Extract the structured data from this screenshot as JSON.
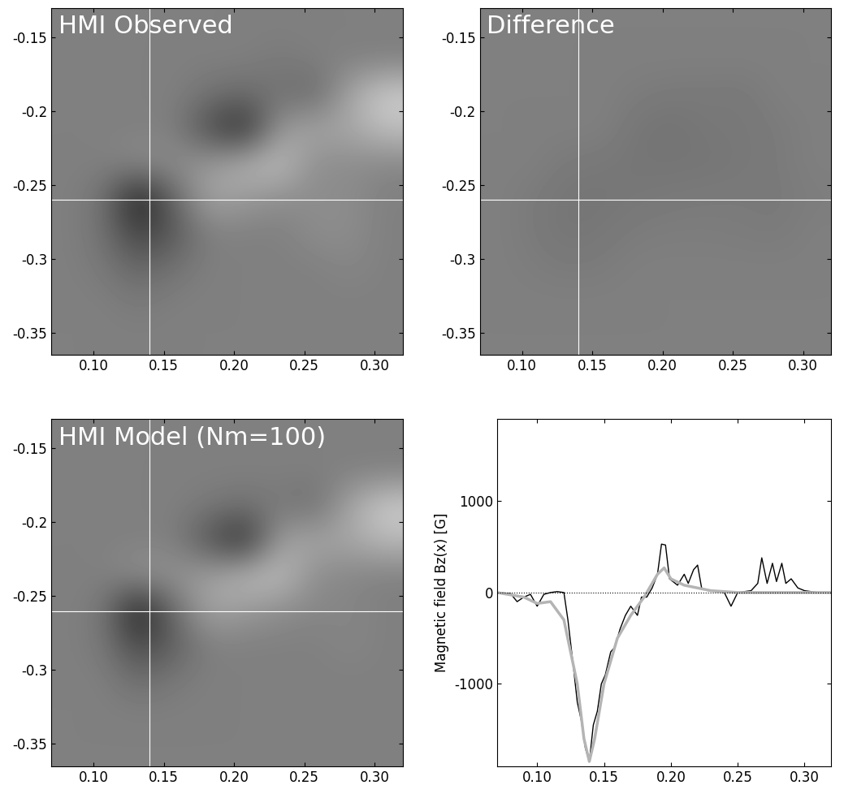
{
  "chart_data": [
    {
      "type": "heatmap",
      "title": "HMI Observed",
      "xlim": [
        0.07,
        0.32
      ],
      "ylim": [
        -0.365,
        -0.13
      ],
      "xticks": [
        {
          "value": 0.1,
          "label": "0.10"
        },
        {
          "value": 0.15,
          "label": "0.15"
        },
        {
          "value": 0.2,
          "label": "0.20"
        },
        {
          "value": 0.25,
          "label": "0.25"
        },
        {
          "value": 0.3,
          "label": "0.30"
        }
      ],
      "yticks": [
        -0.15,
        -0.2,
        -0.25,
        -0.3,
        -0.35
      ],
      "crosshair": {
        "x": 0.14,
        "y": -0.26
      },
      "cell_range": [
        -1000,
        1000
      ],
      "cells": [
        [
          0,
          0,
          0,
          0,
          0,
          0,
          0,
          0,
          0,
          0
        ],
        [
          0,
          0,
          0,
          0,
          0,
          0,
          -50,
          0,
          0,
          0
        ],
        [
          0,
          0,
          0,
          0,
          -100,
          -150,
          -100,
          -200,
          300,
          600
        ],
        [
          0,
          0,
          0,
          0,
          -400,
          -700,
          200,
          300,
          300,
          500
        ],
        [
          0,
          0,
          100,
          100,
          200,
          400,
          500,
          100,
          100,
          50
        ],
        [
          0,
          -100,
          -800,
          -200,
          300,
          200,
          100,
          100,
          100,
          0
        ],
        [
          0,
          -100,
          -500,
          -300,
          0,
          0,
          0,
          100,
          100,
          0
        ],
        [
          0,
          -50,
          -200,
          -100,
          0,
          0,
          0,
          0,
          50,
          0
        ],
        [
          0,
          0,
          -50,
          0,
          0,
          0,
          0,
          0,
          0,
          0
        ],
        [
          0,
          0,
          0,
          0,
          0,
          0,
          0,
          0,
          0,
          0
        ]
      ]
    },
    {
      "type": "heatmap",
      "title": "Difference",
      "xlim": [
        0.07,
        0.32
      ],
      "ylim": [
        -0.365,
        -0.13
      ],
      "xticks": [
        {
          "value": 0.1,
          "label": "0.10"
        },
        {
          "value": 0.15,
          "label": "0.15"
        },
        {
          "value": 0.2,
          "label": "0.20"
        },
        {
          "value": 0.25,
          "label": "0.25"
        },
        {
          "value": 0.3,
          "label": "0.30"
        }
      ],
      "yticks": [
        -0.15,
        -0.2,
        -0.25,
        -0.3,
        -0.35
      ],
      "crosshair": {
        "x": 0.14,
        "y": -0.26
      },
      "cell_range": [
        -1000,
        1000
      ],
      "cells": [
        [
          0,
          0,
          0,
          0,
          0,
          0,
          0,
          0,
          0,
          0
        ],
        [
          0,
          0,
          0,
          0,
          0,
          0,
          0,
          0,
          0,
          0
        ],
        [
          0,
          0,
          0,
          0,
          -30,
          -50,
          -50,
          -60,
          0,
          0
        ],
        [
          0,
          0,
          0,
          0,
          -80,
          -100,
          -60,
          -60,
          -40,
          0
        ],
        [
          0,
          0,
          -50,
          -60,
          -80,
          -80,
          -80,
          -60,
          -40,
          0
        ],
        [
          0,
          -40,
          -80,
          -80,
          -60,
          -50,
          -40,
          -40,
          -50,
          -20
        ],
        [
          0,
          -40,
          -80,
          -60,
          -30,
          -20,
          -20,
          -30,
          -40,
          0
        ],
        [
          0,
          -20,
          -40,
          -30,
          0,
          0,
          0,
          0,
          0,
          0
        ],
        [
          0,
          0,
          0,
          0,
          0,
          0,
          0,
          0,
          0,
          0
        ],
        [
          0,
          0,
          0,
          0,
          0,
          0,
          0,
          0,
          0,
          0
        ]
      ]
    },
    {
      "type": "heatmap",
      "title": "HMI Model (Nm=100)",
      "xlim": [
        0.07,
        0.32
      ],
      "ylim": [
        -0.365,
        -0.13
      ],
      "xticks": [
        {
          "value": 0.1,
          "label": "0.10"
        },
        {
          "value": 0.15,
          "label": "0.15"
        },
        {
          "value": 0.2,
          "label": "0.20"
        },
        {
          "value": 0.25,
          "label": "0.25"
        },
        {
          "value": 0.3,
          "label": "0.30"
        }
      ],
      "yticks": [
        -0.15,
        -0.2,
        -0.25,
        -0.3,
        -0.35
      ],
      "crosshair": {
        "x": 0.14,
        "y": -0.26
      },
      "cell_range": [
        -1000,
        1000
      ],
      "cells": [
        [
          0,
          0,
          0,
          0,
          0,
          0,
          0,
          0,
          0,
          0
        ],
        [
          0,
          0,
          0,
          0,
          0,
          0,
          0,
          0,
          0,
          0
        ],
        [
          0,
          0,
          0,
          0,
          -50,
          -100,
          -50,
          -150,
          300,
          600
        ],
        [
          0,
          0,
          0,
          0,
          -350,
          -700,
          250,
          300,
          300,
          450
        ],
        [
          0,
          0,
          150,
          150,
          250,
          450,
          500,
          100,
          50,
          0
        ],
        [
          0,
          -50,
          -800,
          -150,
          300,
          200,
          100,
          50,
          50,
          0
        ],
        [
          0,
          -50,
          -450,
          -250,
          0,
          0,
          0,
          0,
          50,
          0
        ],
        [
          0,
          0,
          -150,
          -50,
          0,
          0,
          0,
          0,
          0,
          0
        ],
        [
          0,
          0,
          0,
          0,
          0,
          0,
          0,
          0,
          0,
          0
        ],
        [
          0,
          0,
          0,
          0,
          0,
          0,
          0,
          0,
          0,
          0
        ]
      ]
    },
    {
      "type": "line",
      "y_label": "Magnetic field Bz(x) [G]",
      "xlim": [
        0.07,
        0.32
      ],
      "ylim": [
        -1900,
        1900
      ],
      "xticks": [
        {
          "value": 0.1,
          "label": "0.10"
        },
        {
          "value": 0.15,
          "label": "0.15"
        },
        {
          "value": 0.2,
          "label": "0.20"
        },
        {
          "value": 0.25,
          "label": "0.25"
        },
        {
          "value": 0.3,
          "label": "0.30"
        }
      ],
      "yticks": [
        -1000,
        0,
        1000
      ],
      "series": [
        {
          "color": "#000000",
          "x": [
            0.07,
            0.08,
            0.085,
            0.09,
            0.095,
            0.1,
            0.105,
            0.11,
            0.115,
            0.12,
            0.123,
            0.127,
            0.13,
            0.133,
            0.136,
            0.139,
            0.142,
            0.145,
            0.148,
            0.151,
            0.155,
            0.158,
            0.162,
            0.166,
            0.17,
            0.175,
            0.178,
            0.182,
            0.186,
            0.19,
            0.193,
            0.196,
            0.199,
            0.205,
            0.21,
            0.213,
            0.217,
            0.22,
            0.223,
            0.228,
            0.235,
            0.24,
            0.245,
            0.25,
            0.26,
            0.265,
            0.268,
            0.272,
            0.276,
            0.279,
            0.283,
            0.286,
            0.29,
            0.295,
            0.3,
            0.31,
            0.32
          ],
          "values": [
            0,
            -10,
            -100,
            -50,
            -20,
            -150,
            -20,
            0,
            10,
            0,
            -300,
            -800,
            -1200,
            -1400,
            -1700,
            -1850,
            -1450,
            -1300,
            -1000,
            -900,
            -650,
            -600,
            -400,
            -250,
            -150,
            -250,
            -50,
            -50,
            50,
            200,
            530,
            520,
            150,
            80,
            200,
            100,
            250,
            300,
            50,
            20,
            10,
            0,
            -150,
            0,
            20,
            100,
            380,
            100,
            320,
            120,
            320,
            100,
            150,
            50,
            20,
            0,
            0
          ]
        },
        {
          "color": "#b4b4b4",
          "x": [
            0.07,
            0.09,
            0.1,
            0.11,
            0.12,
            0.13,
            0.135,
            0.139,
            0.143,
            0.15,
            0.16,
            0.17,
            0.18,
            0.19,
            0.195,
            0.2,
            0.21,
            0.22,
            0.23,
            0.25,
            0.32
          ],
          "values": [
            0,
            -50,
            -120,
            -100,
            -300,
            -1000,
            -1600,
            -1850,
            -1600,
            -1000,
            -500,
            -250,
            -50,
            200,
            270,
            150,
            80,
            50,
            20,
            0,
            0
          ]
        }
      ]
    }
  ]
}
